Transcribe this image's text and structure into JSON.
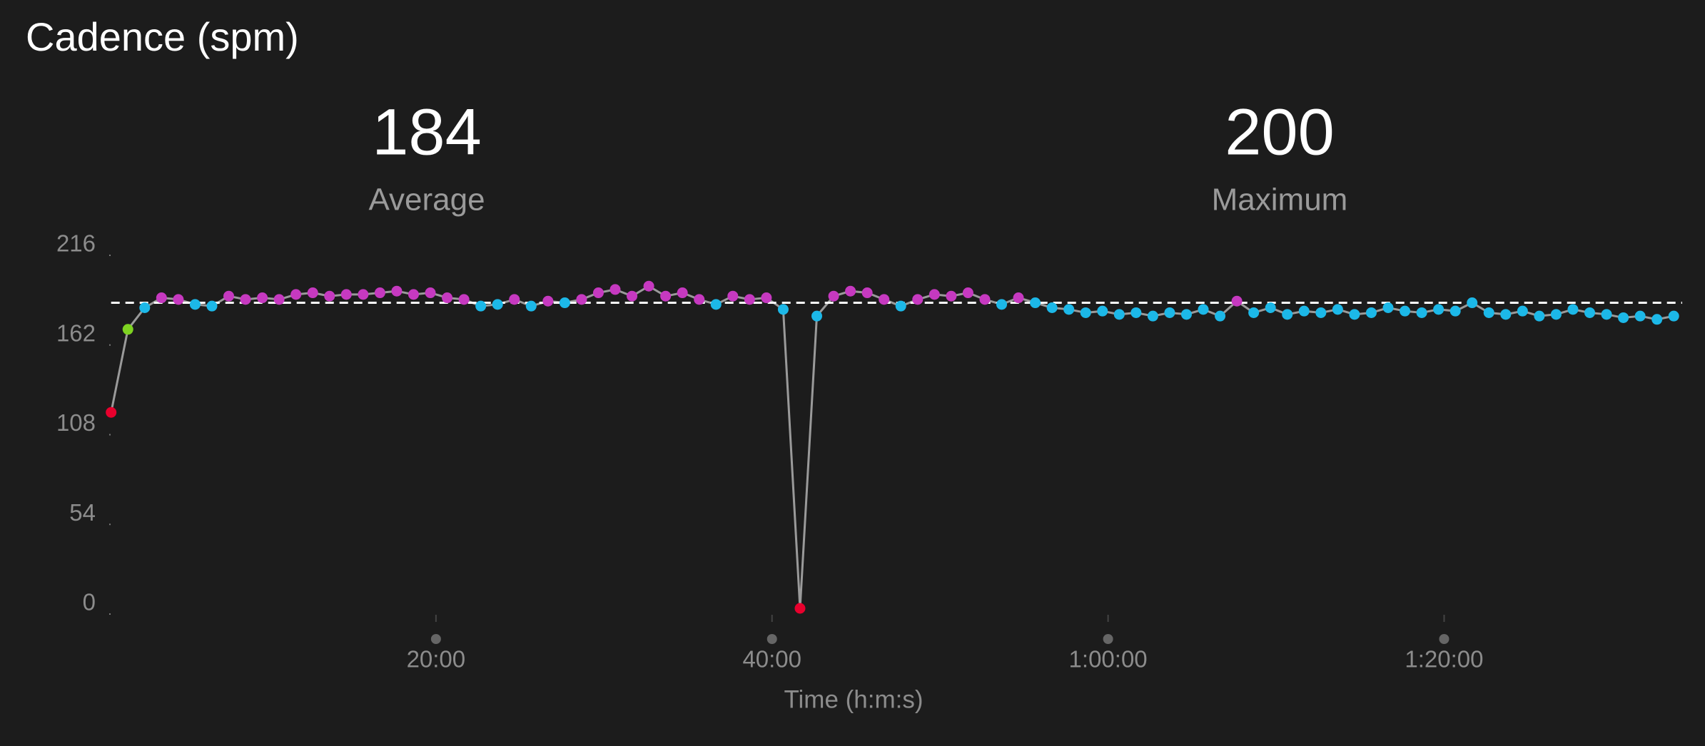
{
  "chart_data": {
    "type": "line",
    "title": "Cadence (spm)",
    "stats": [
      {
        "value": 184,
        "label": "Average"
      },
      {
        "value": 200,
        "label": "Maximum"
      }
    ],
    "reference_line": "chart_data.stats.0.value",
    "x_label": "Time (h:m:s)",
    "xlim": [
      0,
      5650
    ],
    "xticks": [
      {
        "value": 1200,
        "label": "20:00"
      },
      {
        "value": 2400,
        "label": "40:00"
      },
      {
        "value": 3600,
        "label": "1:00:00"
      },
      {
        "value": 4800,
        "label": "1:20:00"
      }
    ],
    "ylim": [
      0,
      216
    ],
    "yticks": [
      0,
      54,
      108,
      162,
      216
    ],
    "line_color": "#9a9a9a",
    "x": [
      40,
      100,
      160,
      220,
      280,
      340,
      400,
      460,
      520,
      580,
      640,
      700,
      760,
      820,
      880,
      940,
      1000,
      1060,
      1120,
      1180,
      1240,
      1300,
      1360,
      1420,
      1480,
      1540,
      1600,
      1660,
      1720,
      1780,
      1840,
      1900,
      1960,
      2020,
      2080,
      2140,
      2200,
      2260,
      2320,
      2380,
      2440,
      2500,
      2560,
      2620,
      2680,
      2740,
      2800,
      2860,
      2920,
      2980,
      3040,
      3100,
      3160,
      3220,
      3280,
      3340,
      3400,
      3460,
      3520,
      3580,
      3640,
      3700,
      3760,
      3820,
      3880,
      3940,
      4000,
      4060,
      4120,
      4180,
      4240,
      4300,
      4360,
      4420,
      4480,
      4540,
      4600,
      4660,
      4720,
      4780,
      4840,
      4900,
      4960,
      5020,
      5080,
      5140,
      5200,
      5260,
      5320,
      5380,
      5440,
      5500,
      5560,
      5620
    ],
    "values": [
      118,
      168,
      181,
      187,
      186,
      183,
      182,
      188,
      186,
      187,
      186,
      189,
      190,
      188,
      189,
      189,
      190,
      191,
      189,
      190,
      187,
      186,
      182,
      183,
      186,
      182,
      185,
      184,
      186,
      190,
      192,
      188,
      194,
      188,
      190,
      186,
      183,
      188,
      186,
      187,
      180,
      0,
      176,
      188,
      191,
      190,
      186,
      182,
      186,
      189,
      188,
      190,
      186,
      183,
      187,
      184,
      181,
      180,
      178,
      179,
      177,
      178,
      176,
      178,
      177,
      180,
      176,
      185,
      178,
      181,
      177,
      179,
      178,
      180,
      177,
      178,
      181,
      179,
      178,
      180,
      179,
      184,
      178,
      177,
      179,
      176,
      177,
      180,
      178,
      177,
      175,
      176,
      174,
      176
    ],
    "point_colors": [
      "#e8002d",
      "#7ed321",
      "#1cb8e8",
      "#c639c0",
      "#c639c0",
      "#1cb8e8",
      "#1cb8e8",
      "#c639c0",
      "#c639c0",
      "#c639c0",
      "#c639c0",
      "#c639c0",
      "#c639c0",
      "#c639c0",
      "#c639c0",
      "#c639c0",
      "#c639c0",
      "#c639c0",
      "#c639c0",
      "#c639c0",
      "#c639c0",
      "#c639c0",
      "#1cb8e8",
      "#1cb8e8",
      "#c639c0",
      "#1cb8e8",
      "#c639c0",
      "#1cb8e8",
      "#c639c0",
      "#c639c0",
      "#c639c0",
      "#c639c0",
      "#c639c0",
      "#c639c0",
      "#c639c0",
      "#c639c0",
      "#1cb8e8",
      "#c639c0",
      "#c639c0",
      "#c639c0",
      "#1cb8e8",
      "#e8002d",
      "#1cb8e8",
      "#c639c0",
      "#c639c0",
      "#c639c0",
      "#c639c0",
      "#1cb8e8",
      "#c639c0",
      "#c639c0",
      "#c639c0",
      "#c639c0",
      "#c639c0",
      "#1cb8e8",
      "#c639c0",
      "#1cb8e8",
      "#1cb8e8",
      "#1cb8e8",
      "#1cb8e8",
      "#1cb8e8",
      "#1cb8e8",
      "#1cb8e8",
      "#1cb8e8",
      "#1cb8e8",
      "#1cb8e8",
      "#1cb8e8",
      "#1cb8e8",
      "#c639c0",
      "#1cb8e8",
      "#1cb8e8",
      "#1cb8e8",
      "#1cb8e8",
      "#1cb8e8",
      "#1cb8e8",
      "#1cb8e8",
      "#1cb8e8",
      "#1cb8e8",
      "#1cb8e8",
      "#1cb8e8",
      "#1cb8e8",
      "#1cb8e8",
      "#1cb8e8",
      "#1cb8e8",
      "#1cb8e8",
      "#1cb8e8",
      "#1cb8e8",
      "#1cb8e8",
      "#1cb8e8",
      "#1cb8e8",
      "#1cb8e8",
      "#1cb8e8",
      "#1cb8e8",
      "#1cb8e8",
      "#1cb8e8"
    ]
  }
}
